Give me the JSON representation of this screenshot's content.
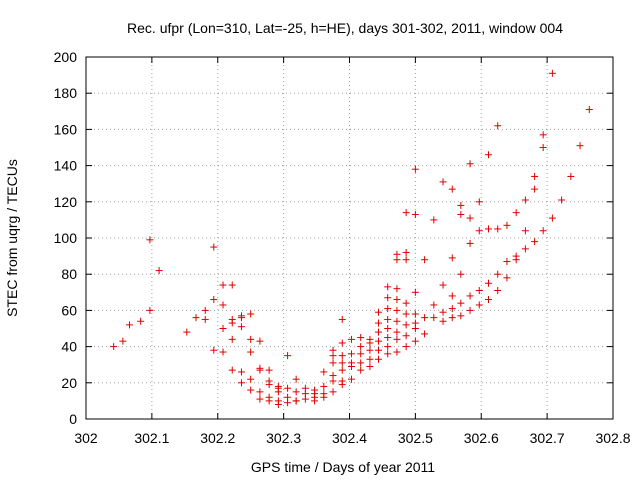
{
  "chart_data": {
    "type": "scatter",
    "title": "Rec. ufpr (Lon=310, Lat=-25, h=HE), days 301-302, 2011, window 004",
    "xlabel": "GPS time / Days of year 2011",
    "ylabel": "STEC from uqrg / TECUs",
    "xlim": [
      302,
      302.8
    ],
    "ylim": [
      0,
      200
    ],
    "xticks": [
      "302",
      "302.1",
      "302.2",
      "302.3",
      "302.4",
      "302.5",
      "302.6",
      "302.7",
      "302.8"
    ],
    "yticks": [
      "0",
      "20",
      "40",
      "60",
      "80",
      "100",
      "120",
      "140",
      "160",
      "180",
      "200"
    ],
    "grid": true,
    "marker": "+",
    "color": "#e00000",
    "points": [
      [
        302.042,
        40
      ],
      [
        302.056,
        43
      ],
      [
        302.066,
        52
      ],
      [
        302.083,
        54
      ],
      [
        302.097,
        99
      ],
      [
        302.097,
        60
      ],
      [
        302.111,
        82
      ],
      [
        302.153,
        48
      ],
      [
        302.167,
        56
      ],
      [
        302.181,
        55
      ],
      [
        302.181,
        60
      ],
      [
        302.194,
        95
      ],
      [
        302.194,
        66
      ],
      [
        302.194,
        38
      ],
      [
        302.208,
        74
      ],
      [
        302.208,
        63
      ],
      [
        302.208,
        50
      ],
      [
        302.208,
        37
      ],
      [
        302.222,
        74
      ],
      [
        302.222,
        55
      ],
      [
        302.222,
        53
      ],
      [
        302.222,
        44
      ],
      [
        302.222,
        27
      ],
      [
        302.236,
        57
      ],
      [
        302.236,
        56
      ],
      [
        302.236,
        51
      ],
      [
        302.236,
        26
      ],
      [
        302.236,
        20
      ],
      [
        302.25,
        58
      ],
      [
        302.25,
        44
      ],
      [
        302.25,
        37
      ],
      [
        302.25,
        22
      ],
      [
        302.25,
        16
      ],
      [
        302.264,
        43
      ],
      [
        302.264,
        28
      ],
      [
        302.264,
        27
      ],
      [
        302.264,
        15
      ],
      [
        302.264,
        11
      ],
      [
        302.278,
        27
      ],
      [
        302.278,
        21
      ],
      [
        302.278,
        19
      ],
      [
        302.278,
        12
      ],
      [
        302.278,
        10
      ],
      [
        302.292,
        18
      ],
      [
        302.292,
        17
      ],
      [
        302.292,
        15
      ],
      [
        302.292,
        10
      ],
      [
        302.292,
        8
      ],
      [
        302.306,
        35
      ],
      [
        302.306,
        17
      ],
      [
        302.306,
        12
      ],
      [
        302.306,
        9
      ],
      [
        302.319,
        22
      ],
      [
        302.319,
        15
      ],
      [
        302.319,
        10
      ],
      [
        302.319,
        10
      ],
      [
        302.333,
        17
      ],
      [
        302.333,
        14
      ],
      [
        302.333,
        11
      ],
      [
        302.347,
        16
      ],
      [
        302.347,
        14
      ],
      [
        302.347,
        12
      ],
      [
        302.347,
        10
      ],
      [
        302.361,
        26
      ],
      [
        302.361,
        18
      ],
      [
        302.361,
        14
      ],
      [
        302.361,
        12
      ],
      [
        302.375,
        38
      ],
      [
        302.375,
        35
      ],
      [
        302.375,
        31
      ],
      [
        302.375,
        24
      ],
      [
        302.375,
        21
      ],
      [
        302.375,
        15
      ],
      [
        302.389,
        55
      ],
      [
        302.389,
        42
      ],
      [
        302.389,
        35
      ],
      [
        302.389,
        31
      ],
      [
        302.389,
        27
      ],
      [
        302.389,
        21
      ],
      [
        302.389,
        19
      ],
      [
        302.403,
        44
      ],
      [
        302.403,
        36
      ],
      [
        302.403,
        31
      ],
      [
        302.403,
        29
      ],
      [
        302.403,
        22
      ],
      [
        302.417,
        45
      ],
      [
        302.417,
        40
      ],
      [
        302.417,
        36
      ],
      [
        302.417,
        31
      ],
      [
        302.417,
        27
      ],
      [
        302.431,
        44
      ],
      [
        302.431,
        42
      ],
      [
        302.431,
        38
      ],
      [
        302.431,
        33
      ],
      [
        302.431,
        29
      ],
      [
        302.444,
        59
      ],
      [
        302.444,
        53
      ],
      [
        302.444,
        48
      ],
      [
        302.444,
        43
      ],
      [
        302.444,
        38
      ],
      [
        302.444,
        33
      ],
      [
        302.458,
        73
      ],
      [
        302.458,
        67
      ],
      [
        302.458,
        61
      ],
      [
        302.458,
        55
      ],
      [
        302.458,
        50
      ],
      [
        302.458,
        45
      ],
      [
        302.458,
        40
      ],
      [
        302.458,
        36
      ],
      [
        302.472,
        91
      ],
      [
        302.472,
        88
      ],
      [
        302.472,
        72
      ],
      [
        302.472,
        66
      ],
      [
        302.472,
        60
      ],
      [
        302.472,
        54
      ],
      [
        302.472,
        48
      ],
      [
        302.472,
        44
      ],
      [
        302.472,
        37
      ],
      [
        302.486,
        114
      ],
      [
        302.486,
        92
      ],
      [
        302.486,
        88
      ],
      [
        302.486,
        64
      ],
      [
        302.486,
        58
      ],
      [
        302.486,
        52
      ],
      [
        302.486,
        46
      ],
      [
        302.486,
        40
      ],
      [
        302.5,
        138
      ],
      [
        302.5,
        113
      ],
      [
        302.5,
        70
      ],
      [
        302.5,
        58
      ],
      [
        302.5,
        53
      ],
      [
        302.5,
        50
      ],
      [
        302.5,
        43
      ],
      [
        302.514,
        88
      ],
      [
        302.514,
        56
      ],
      [
        302.514,
        47
      ],
      [
        302.528,
        110
      ],
      [
        302.528,
        63
      ],
      [
        302.528,
        56
      ],
      [
        302.542,
        131
      ],
      [
        302.542,
        74
      ],
      [
        302.542,
        59
      ],
      [
        302.542,
        54
      ],
      [
        302.556,
        127
      ],
      [
        302.556,
        89
      ],
      [
        302.556,
        68
      ],
      [
        302.556,
        61
      ],
      [
        302.556,
        56
      ],
      [
        302.569,
        118
      ],
      [
        302.569,
        113
      ],
      [
        302.569,
        80
      ],
      [
        302.569,
        64
      ],
      [
        302.569,
        57
      ],
      [
        302.583,
        141
      ],
      [
        302.583,
        111
      ],
      [
        302.583,
        97
      ],
      [
        302.583,
        68
      ],
      [
        302.583,
        60
      ],
      [
        302.597,
        120
      ],
      [
        302.597,
        104
      ],
      [
        302.597,
        71
      ],
      [
        302.597,
        63
      ],
      [
        302.611,
        146
      ],
      [
        302.611,
        105
      ],
      [
        302.611,
        75
      ],
      [
        302.611,
        66
      ],
      [
        302.625,
        162
      ],
      [
        302.625,
        105
      ],
      [
        302.625,
        80
      ],
      [
        302.625,
        71
      ],
      [
        302.639,
        107
      ],
      [
        302.639,
        87
      ],
      [
        302.639,
        78
      ],
      [
        302.653,
        114
      ],
      [
        302.653,
        90
      ],
      [
        302.653,
        88
      ],
      [
        302.667,
        121
      ],
      [
        302.667,
        104
      ],
      [
        302.667,
        94
      ],
      [
        302.681,
        134
      ],
      [
        302.681,
        127
      ],
      [
        302.681,
        98
      ],
      [
        302.694,
        157
      ],
      [
        302.694,
        150
      ],
      [
        302.694,
        104
      ],
      [
        302.708,
        191
      ],
      [
        302.708,
        111
      ],
      [
        302.722,
        121
      ],
      [
        302.736,
        134
      ],
      [
        302.75,
        151
      ],
      [
        302.764,
        171
      ]
    ]
  }
}
